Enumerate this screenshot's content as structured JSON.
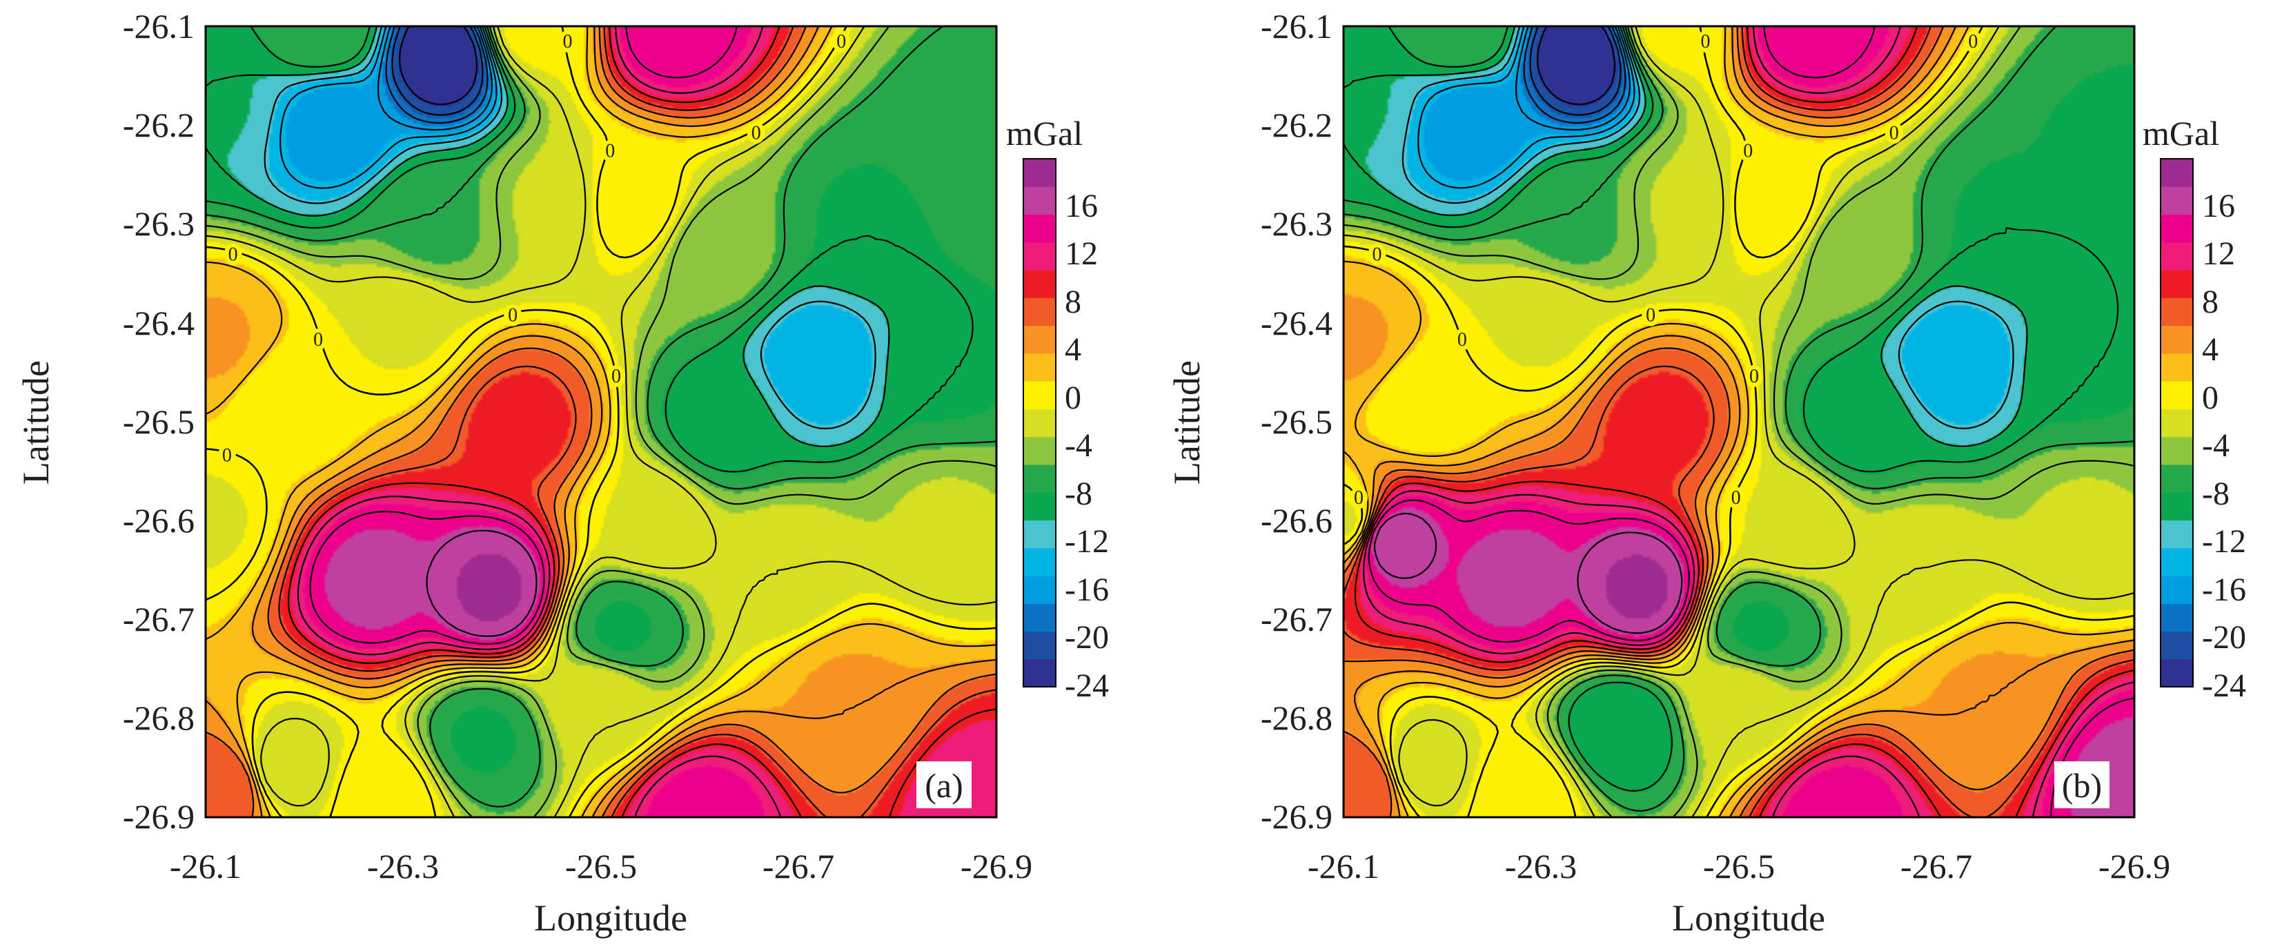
{
  "colors": {
    "levels": [
      "#2e3192",
      "#1c4fa1",
      "#0d72c4",
      "#009ee0",
      "#00b5e6",
      "#4cc4d0",
      "#0aa84e",
      "#27a84a",
      "#8dc63f",
      "#d7df23",
      "#fff200",
      "#fcbf19",
      "#f79421",
      "#f15a29",
      "#ed1c24",
      "#ee1d7a",
      "#ec008c",
      "#c040a0",
      "#9e2b8f"
    ],
    "contour": "#000000",
    "text": "#231f20"
  },
  "chart_data": [
    {
      "type": "heatmap",
      "panel_label": "(a)",
      "xlabel": "Longitude",
      "ylabel": "Latitude",
      "x_ticks": [
        "-26.1",
        "-26.3",
        "-26.5",
        "-26.7",
        "-26.9"
      ],
      "y_ticks": [
        "-26.1",
        "-26.2",
        "-26.3",
        "-26.4",
        "-26.5",
        "-26.6",
        "-26.7",
        "-26.8",
        "-26.9"
      ],
      "xlim": [
        -26.1,
        -26.9
      ],
      "ylim": [
        -26.9,
        -26.1
      ],
      "contour_interval": 2,
      "contour_labels": [
        "0",
        "0",
        "0",
        "0",
        "0",
        "0",
        "0",
        "0",
        "0"
      ],
      "colorbar": {
        "unit": "mGal",
        "tick_labels": [
          "16",
          "12",
          "8",
          "4",
          "0",
          "-4",
          "-8",
          "-12",
          "-16",
          "-20",
          "-24"
        ],
        "range": [
          -24,
          20
        ]
      },
      "features": [
        {
          "lon": -26.34,
          "lat": -26.13,
          "value": -24
        },
        {
          "lon": -26.23,
          "lat": -26.2,
          "value": -16
        },
        {
          "lon": -26.11,
          "lat": -26.18,
          "value": -10
        },
        {
          "lon": -26.22,
          "lat": -26.1,
          "value": -6
        },
        {
          "lon": -26.43,
          "lat": -26.1,
          "value": 0
        },
        {
          "lon": -26.53,
          "lat": -26.28,
          "value": 1
        },
        {
          "lon": -26.57,
          "lat": -26.1,
          "value": 15
        },
        {
          "lon": -26.27,
          "lat": -26.66,
          "value": 16
        },
        {
          "lon": -26.39,
          "lat": -26.67,
          "value": 18
        },
        {
          "lon": -26.42,
          "lat": -26.5,
          "value": 9
        },
        {
          "lon": -26.72,
          "lat": -26.44,
          "value": -14
        },
        {
          "lon": -26.62,
          "lat": -26.5,
          "value": -9
        },
        {
          "lon": -26.77,
          "lat": -26.3,
          "value": -8
        },
        {
          "lon": -26.88,
          "lat": -26.23,
          "value": -7
        },
        {
          "lon": -26.52,
          "lat": -26.71,
          "value": -8
        },
        {
          "lon": -26.38,
          "lat": -26.82,
          "value": -8
        },
        {
          "lon": -26.6,
          "lat": -26.9,
          "value": 14
        },
        {
          "lon": -26.75,
          "lat": -26.78,
          "value": 4
        },
        {
          "lon": -26.88,
          "lat": -26.88,
          "value": 12
        },
        {
          "lon": -26.12,
          "lat": -26.87,
          "value": 8
        },
        {
          "lon": -26.18,
          "lat": -26.85,
          "value": -3
        },
        {
          "lon": -26.11,
          "lat": -26.42,
          "value": 4
        },
        {
          "lon": -26.1,
          "lat": -26.6,
          "value": -1
        },
        {
          "lon": -26.18,
          "lat": -26.48,
          "value": 0
        },
        {
          "lon": -26.55,
          "lat": -26.6,
          "value": -1
        },
        {
          "lon": -26.68,
          "lat": -26.65,
          "value": -2
        },
        {
          "lon": -26.85,
          "lat": -26.6,
          "value": -3
        },
        {
          "lon": -26.3,
          "lat": -26.4,
          "value": -1
        },
        {
          "lon": -26.45,
          "lat": -26.28,
          "value": -3
        },
        {
          "lon": -26.33,
          "lat": -26.3,
          "value": -6
        },
        {
          "lon": -26.5,
          "lat": -26.78,
          "value": -2
        },
        {
          "lon": -26.28,
          "lat": -26.88,
          "value": 1
        },
        {
          "lon": -26.85,
          "lat": -26.45,
          "value": -8
        },
        {
          "lon": -26.62,
          "lat": -26.33,
          "value": -5
        }
      ]
    },
    {
      "type": "heatmap",
      "panel_label": "(b)",
      "xlabel": "Longitude",
      "ylabel": "Latitude",
      "x_ticks": [
        "-26.1",
        "-26.3",
        "-26.5",
        "-26.7",
        "-26.9"
      ],
      "y_ticks": [
        "-26.1",
        "-26.2",
        "-26.3",
        "-26.4",
        "-26.5",
        "-26.6",
        "-26.7",
        "-26.8",
        "-26.9"
      ],
      "xlim": [
        -26.1,
        -26.9
      ],
      "ylim": [
        -26.9,
        -26.1
      ],
      "contour_interval": 2,
      "contour_labels": [
        "0",
        "0",
        "0",
        "0",
        "0",
        "0",
        "0",
        "0",
        "0",
        "0"
      ],
      "colorbar": {
        "unit": "mGal",
        "tick_labels": [
          "16",
          "12",
          "8",
          "4",
          "0",
          "-4",
          "-8",
          "-12",
          "-16",
          "-20",
          "-24"
        ],
        "range": [
          -24,
          20
        ]
      },
      "features": [
        {
          "lon": -26.34,
          "lat": -26.13,
          "value": -24
        },
        {
          "lon": -26.23,
          "lat": -26.2,
          "value": -16
        },
        {
          "lon": -26.11,
          "lat": -26.18,
          "value": -10
        },
        {
          "lon": -26.22,
          "lat": -26.1,
          "value": -6
        },
        {
          "lon": -26.43,
          "lat": -26.1,
          "value": 0
        },
        {
          "lon": -26.53,
          "lat": -26.28,
          "value": 1
        },
        {
          "lon": -26.57,
          "lat": -26.1,
          "value": 15
        },
        {
          "lon": -26.27,
          "lat": -26.66,
          "value": 16
        },
        {
          "lon": -26.4,
          "lat": -26.67,
          "value": 18
        },
        {
          "lon": -26.15,
          "lat": -26.62,
          "value": 17
        },
        {
          "lon": -26.42,
          "lat": -26.5,
          "value": 9
        },
        {
          "lon": -26.72,
          "lat": -26.44,
          "value": -14
        },
        {
          "lon": -26.62,
          "lat": -26.5,
          "value": -9
        },
        {
          "lon": -26.77,
          "lat": -26.3,
          "value": -8
        },
        {
          "lon": -26.88,
          "lat": -26.23,
          "value": -8
        },
        {
          "lon": -26.52,
          "lat": -26.71,
          "value": -8
        },
        {
          "lon": -26.38,
          "lat": -26.81,
          "value": -10
        },
        {
          "lon": -26.6,
          "lat": -26.9,
          "value": 14
        },
        {
          "lon": -26.75,
          "lat": -26.78,
          "value": 4
        },
        {
          "lon": -26.89,
          "lat": -26.86,
          "value": 16
        },
        {
          "lon": -26.12,
          "lat": -26.87,
          "value": 8
        },
        {
          "lon": -26.18,
          "lat": -26.85,
          "value": -3
        },
        {
          "lon": -26.11,
          "lat": -26.42,
          "value": 4
        },
        {
          "lon": -26.1,
          "lat": -26.6,
          "value": -1
        },
        {
          "lon": -26.18,
          "lat": -26.48,
          "value": 0
        },
        {
          "lon": -26.55,
          "lat": -26.6,
          "value": -1
        },
        {
          "lon": -26.68,
          "lat": -26.65,
          "value": -2
        },
        {
          "lon": -26.85,
          "lat": -26.6,
          "value": -3
        },
        {
          "lon": -26.3,
          "lat": -26.4,
          "value": -1
        },
        {
          "lon": -26.45,
          "lat": -26.28,
          "value": -3
        },
        {
          "lon": -26.33,
          "lat": -26.3,
          "value": -6
        },
        {
          "lon": -26.5,
          "lat": -26.78,
          "value": -2
        },
        {
          "lon": -26.28,
          "lat": -26.88,
          "value": 1
        },
        {
          "lon": -26.85,
          "lat": -26.45,
          "value": -8
        },
        {
          "lon": -26.62,
          "lat": -26.33,
          "value": -5
        }
      ]
    }
  ]
}
